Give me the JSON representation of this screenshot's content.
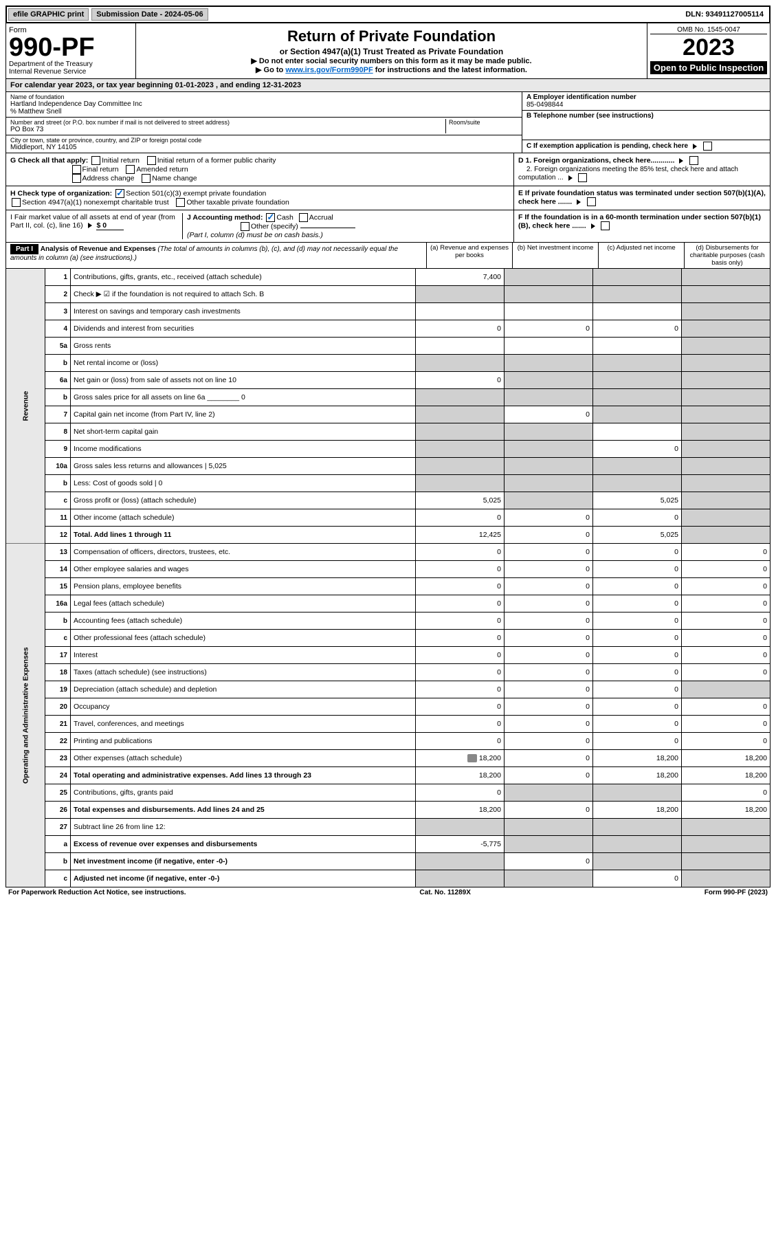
{
  "top": {
    "efile": "efile GRAPHIC print",
    "sub_label": "Submission Date - 2024-05-06",
    "dln": "DLN: 93491127005114"
  },
  "header": {
    "form_word": "Form",
    "form_no": "990-PF",
    "dept1": "Department of the Treasury",
    "dept2": "Internal Revenue Service",
    "title": "Return of Private Foundation",
    "subtitle": "or Section 4947(a)(1) Trust Treated as Private Foundation",
    "note1": "▶ Do not enter social security numbers on this form as it may be made public.",
    "note2_pre": "▶ Go to ",
    "note2_link": "www.irs.gov/Form990PF",
    "note2_post": " for instructions and the latest information.",
    "omb": "OMB No. 1545-0047",
    "year": "2023",
    "open": "Open to Public Inspection"
  },
  "cal": "For calendar year 2023, or tax year beginning 01-01-2023               , and ending 12-31-2023",
  "info": {
    "name_label": "Name of foundation",
    "name": "Hartland Independence Day Committee Inc",
    "care": "% Matthew Snell",
    "addr_label": "Number and street (or P.O. box number if mail is not delivered to street address)",
    "addr": "PO Box 73",
    "room_label": "Room/suite",
    "city_label": "City or town, state or province, country, and ZIP or foreign postal code",
    "city": "Middleport, NY  14105",
    "a_label": "A Employer identification number",
    "a_val": "85-0498844",
    "b_label": "B Telephone number (see instructions)",
    "c_label": "C If exemption application is pending, check here",
    "d1": "D 1. Foreign organizations, check here............",
    "d2": "2. Foreign organizations meeting the 85% test, check here and attach computation ...",
    "e": "E  If private foundation status was terminated under section 507(b)(1)(A), check here .......",
    "f": "F  If the foundation is in a 60-month termination under section 507(b)(1)(B), check here .......",
    "g": "G Check all that apply:",
    "g1": "Initial return",
    "g2": "Initial return of a former public charity",
    "g3": "Final return",
    "g4": "Amended return",
    "g5": "Address change",
    "g6": "Name change",
    "h": "H Check type of organization:",
    "h1": "Section 501(c)(3) exempt private foundation",
    "h2": "Section 4947(a)(1) nonexempt charitable trust",
    "h3": "Other taxable private foundation",
    "i_pre": "I Fair market value of all assets at end of year (from Part II, col. (c), line 16)",
    "i_val": "$ 0",
    "j": "J Accounting method:",
    "j1": "Cash",
    "j2": "Accrual",
    "j3": "Other (specify)",
    "j_note": "(Part I, column (d) must be on cash basis.)"
  },
  "part1": {
    "label": "Part I",
    "title": "Analysis of Revenue and Expenses",
    "title_sub": "(The total of amounts in columns (b), (c), and (d) may not necessarily equal the amounts in column (a) (see instructions).)",
    "col_a": "(a)  Revenue and expenses per books",
    "col_b": "(b)  Net investment income",
    "col_c": "(c)  Adjusted net income",
    "col_d": "(d)  Disbursements for charitable purposes (cash basis only)"
  },
  "vert": {
    "rev": "Revenue",
    "exp": "Operating and Administrative Expenses"
  },
  "rows": [
    {
      "n": "1",
      "t": "Contributions, gifts, grants, etc., received (attach schedule)",
      "a": "7,400",
      "b": "",
      "c": "",
      "d": "",
      "sb": 1,
      "sc": 1,
      "sd": 1
    },
    {
      "n": "2",
      "t": "Check ▶ ☑ if the foundation is not required to attach Sch. B",
      "a": "",
      "b": "",
      "c": "",
      "d": "",
      "sa": 1,
      "sb": 1,
      "sc": 1,
      "sd": 1
    },
    {
      "n": "3",
      "t": "Interest on savings and temporary cash investments",
      "a": "",
      "b": "",
      "c": "",
      "d": "",
      "sd": 1
    },
    {
      "n": "4",
      "t": "Dividends and interest from securities",
      "a": "0",
      "b": "0",
      "c": "0",
      "d": "",
      "sd": 1
    },
    {
      "n": "5a",
      "t": "Gross rents",
      "a": "",
      "b": "",
      "c": "",
      "d": "",
      "sd": 1
    },
    {
      "n": "b",
      "t": "Net rental income or (loss)",
      "a": "",
      "b": "",
      "c": "",
      "d": "",
      "sa": 1,
      "sb": 1,
      "sc": 1,
      "sd": 1
    },
    {
      "n": "6a",
      "t": "Net gain or (loss) from sale of assets not on line 10",
      "a": "0",
      "b": "",
      "c": "",
      "d": "",
      "sb": 1,
      "sc": 1,
      "sd": 1
    },
    {
      "n": "b",
      "t": "Gross sales price for all assets on line 6a ________ 0",
      "a": "",
      "b": "",
      "c": "",
      "d": "",
      "sa": 1,
      "sb": 1,
      "sc": 1,
      "sd": 1
    },
    {
      "n": "7",
      "t": "Capital gain net income (from Part IV, line 2)",
      "a": "",
      "b": "0",
      "c": "",
      "d": "",
      "sa": 1,
      "sc": 1,
      "sd": 1
    },
    {
      "n": "8",
      "t": "Net short-term capital gain",
      "a": "",
      "b": "",
      "c": "",
      "d": "",
      "sa": 1,
      "sb": 1,
      "sd": 1
    },
    {
      "n": "9",
      "t": "Income modifications",
      "a": "",
      "b": "",
      "c": "0",
      "d": "",
      "sa": 1,
      "sb": 1,
      "sd": 1
    },
    {
      "n": "10a",
      "t": "Gross sales less returns and allowances     |   5,025",
      "a": "",
      "b": "",
      "c": "",
      "d": "",
      "sa": 1,
      "sb": 1,
      "sc": 1,
      "sd": 1
    },
    {
      "n": "b",
      "t": "Less: Cost of goods sold     |   0",
      "a": "",
      "b": "",
      "c": "",
      "d": "",
      "sa": 1,
      "sb": 1,
      "sc": 1,
      "sd": 1
    },
    {
      "n": "c",
      "t": "Gross profit or (loss) (attach schedule)",
      "a": "5,025",
      "b": "",
      "c": "5,025",
      "d": "",
      "sb": 1,
      "sd": 1
    },
    {
      "n": "11",
      "t": "Other income (attach schedule)",
      "a": "0",
      "b": "0",
      "c": "0",
      "d": "",
      "sd": 1
    },
    {
      "n": "12",
      "t": "Total. Add lines 1 through 11",
      "a": "12,425",
      "b": "0",
      "c": "5,025",
      "d": "",
      "sd": 1,
      "bold": 1
    },
    {
      "n": "13",
      "t": "Compensation of officers, directors, trustees, etc.",
      "a": "0",
      "b": "0",
      "c": "0",
      "d": "0"
    },
    {
      "n": "14",
      "t": "Other employee salaries and wages",
      "a": "0",
      "b": "0",
      "c": "0",
      "d": "0"
    },
    {
      "n": "15",
      "t": "Pension plans, employee benefits",
      "a": "0",
      "b": "0",
      "c": "0",
      "d": "0"
    },
    {
      "n": "16a",
      "t": "Legal fees (attach schedule)",
      "a": "0",
      "b": "0",
      "c": "0",
      "d": "0"
    },
    {
      "n": "b",
      "t": "Accounting fees (attach schedule)",
      "a": "0",
      "b": "0",
      "c": "0",
      "d": "0"
    },
    {
      "n": "c",
      "t": "Other professional fees (attach schedule)",
      "a": "0",
      "b": "0",
      "c": "0",
      "d": "0"
    },
    {
      "n": "17",
      "t": "Interest",
      "a": "0",
      "b": "0",
      "c": "0",
      "d": "0"
    },
    {
      "n": "18",
      "t": "Taxes (attach schedule) (see instructions)",
      "a": "0",
      "b": "0",
      "c": "0",
      "d": "0"
    },
    {
      "n": "19",
      "t": "Depreciation (attach schedule) and depletion",
      "a": "0",
      "b": "0",
      "c": "0",
      "d": "",
      "sd": 1
    },
    {
      "n": "20",
      "t": "Occupancy",
      "a": "0",
      "b": "0",
      "c": "0",
      "d": "0"
    },
    {
      "n": "21",
      "t": "Travel, conferences, and meetings",
      "a": "0",
      "b": "0",
      "c": "0",
      "d": "0"
    },
    {
      "n": "22",
      "t": "Printing and publications",
      "a": "0",
      "b": "0",
      "c": "0",
      "d": "0"
    },
    {
      "n": "23",
      "t": "Other expenses (attach schedule)",
      "a": "18,200",
      "b": "0",
      "c": "18,200",
      "d": "18,200",
      "icon": 1
    },
    {
      "n": "24",
      "t": "Total operating and administrative expenses. Add lines 13 through 23",
      "a": "18,200",
      "b": "0",
      "c": "18,200",
      "d": "18,200",
      "bold": 1
    },
    {
      "n": "25",
      "t": "Contributions, gifts, grants paid",
      "a": "0",
      "b": "",
      "c": "",
      "d": "0",
      "sb": 1,
      "sc": 1
    },
    {
      "n": "26",
      "t": "Total expenses and disbursements. Add lines 24 and 25",
      "a": "18,200",
      "b": "0",
      "c": "18,200",
      "d": "18,200",
      "bold": 1
    },
    {
      "n": "27",
      "t": "Subtract line 26 from line 12:",
      "a": "",
      "b": "",
      "c": "",
      "d": "",
      "sa": 1,
      "sb": 1,
      "sc": 1,
      "sd": 1
    },
    {
      "n": "a",
      "t": "Excess of revenue over expenses and disbursements",
      "a": "-5,775",
      "b": "",
      "c": "",
      "d": "",
      "sb": 1,
      "sc": 1,
      "sd": 1,
      "bold": 1
    },
    {
      "n": "b",
      "t": "Net investment income (if negative, enter -0-)",
      "a": "",
      "b": "0",
      "c": "",
      "d": "",
      "sa": 1,
      "sc": 1,
      "sd": 1,
      "bold": 1
    },
    {
      "n": "c",
      "t": "Adjusted net income (if negative, enter -0-)",
      "a": "",
      "b": "",
      "c": "0",
      "d": "",
      "sa": 1,
      "sb": 1,
      "sd": 1,
      "bold": 1
    }
  ],
  "footer": {
    "left": "For Paperwork Reduction Act Notice, see instructions.",
    "mid": "Cat. No. 11289X",
    "right": "Form 990-PF (2023)"
  }
}
